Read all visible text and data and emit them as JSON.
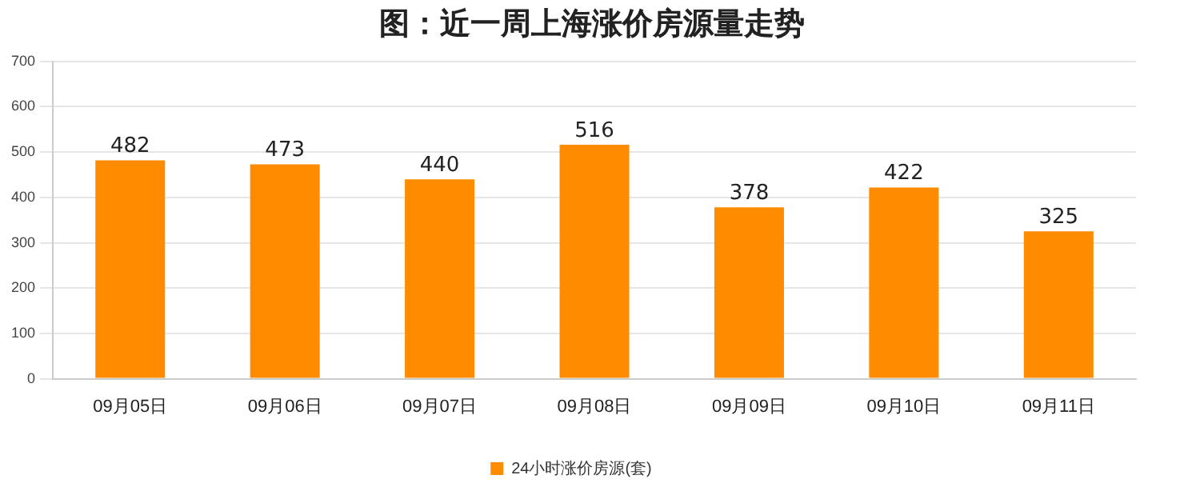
{
  "chart_data": {
    "type": "bar",
    "title": "图：近一周上海涨价房源量走势",
    "categories": [
      "09月05日",
      "09月06日",
      "09月07日",
      "09月08日",
      "09月09日",
      "09月10日",
      "09月11日"
    ],
    "series": [
      {
        "name": "24小时涨价房源(套)",
        "color": "#ff8c00",
        "values": [
          482,
          473,
          440,
          516,
          378,
          422,
          325
        ]
      }
    ],
    "ylim": [
      0,
      700
    ],
    "yticks": [
      0,
      100,
      200,
      300,
      400,
      500,
      600,
      700
    ],
    "grid": "y",
    "legend": "bottom",
    "data_labels": true
  }
}
